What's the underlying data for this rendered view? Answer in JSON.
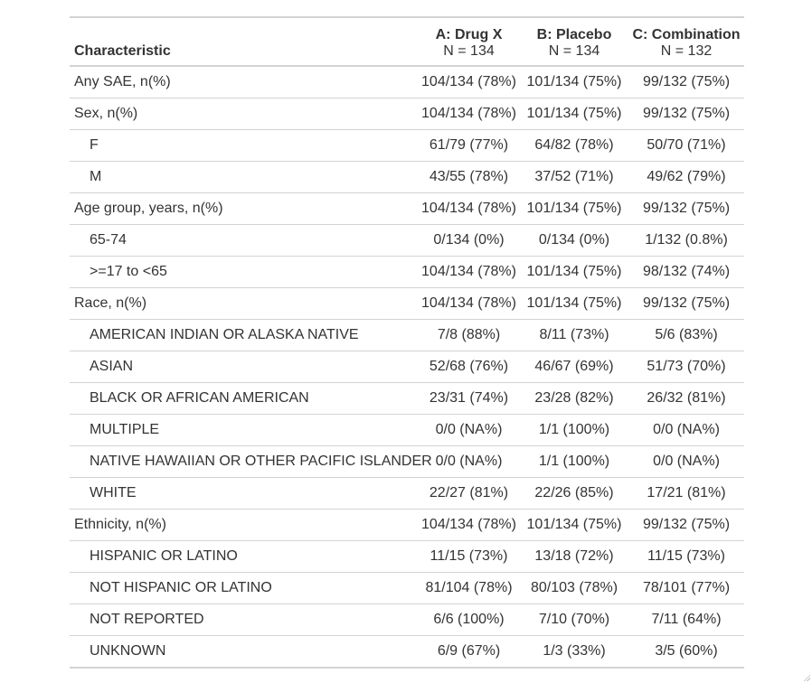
{
  "table": {
    "header": {
      "characteristic": "Characteristic",
      "arms": [
        {
          "name": "A: Drug X",
          "n": "N = 134"
        },
        {
          "name": "B: Placebo",
          "n": "N = 134"
        },
        {
          "name": "C: Combination",
          "n": "N = 132"
        }
      ]
    },
    "rows": [
      {
        "label": "Any SAE, n(%)",
        "level": 0,
        "values": [
          "104/134 (78%)",
          "101/134 (75%)",
          "99/132 (75%)"
        ]
      },
      {
        "label": "Sex, n(%)",
        "level": 0,
        "values": [
          "104/134 (78%)",
          "101/134 (75%)",
          "99/132 (75%)"
        ]
      },
      {
        "label": "F",
        "level": 1,
        "values": [
          "61/79 (77%)",
          "64/82 (78%)",
          "50/70 (71%)"
        ]
      },
      {
        "label": "M",
        "level": 1,
        "values": [
          "43/55 (78%)",
          "37/52 (71%)",
          "49/62 (79%)"
        ]
      },
      {
        "label": "Age group, years, n(%)",
        "level": 0,
        "values": [
          "104/134 (78%)",
          "101/134 (75%)",
          "99/132 (75%)"
        ]
      },
      {
        "label": "65-74",
        "level": 1,
        "values": [
          "0/134 (0%)",
          "0/134 (0%)",
          "1/132 (0.8%)"
        ]
      },
      {
        "label": ">=17 to <65",
        "level": 1,
        "values": [
          "104/134 (78%)",
          "101/134 (75%)",
          "98/132 (74%)"
        ]
      },
      {
        "label": "Race, n(%)",
        "level": 0,
        "values": [
          "104/134 (78%)",
          "101/134 (75%)",
          "99/132 (75%)"
        ]
      },
      {
        "label": "AMERICAN INDIAN OR ALASKA NATIVE",
        "level": 1,
        "values": [
          "7/8 (88%)",
          "8/11 (73%)",
          "5/6 (83%)"
        ]
      },
      {
        "label": "ASIAN",
        "level": 1,
        "values": [
          "52/68 (76%)",
          "46/67 (69%)",
          "51/73 (70%)"
        ]
      },
      {
        "label": "BLACK OR AFRICAN AMERICAN",
        "level": 1,
        "values": [
          "23/31 (74%)",
          "23/28 (82%)",
          "26/32 (81%)"
        ]
      },
      {
        "label": "MULTIPLE",
        "level": 1,
        "values": [
          "0/0 (NA%)",
          "1/1 (100%)",
          "0/0 (NA%)"
        ]
      },
      {
        "label": "NATIVE HAWAIIAN OR OTHER PACIFIC ISLANDER",
        "level": 1,
        "values": [
          "0/0 (NA%)",
          "1/1 (100%)",
          "0/0 (NA%)"
        ]
      },
      {
        "label": "WHITE",
        "level": 1,
        "values": [
          "22/27 (81%)",
          "22/26 (85%)",
          "17/21 (81%)"
        ]
      },
      {
        "label": "Ethnicity, n(%)",
        "level": 0,
        "values": [
          "104/134 (78%)",
          "101/134 (75%)",
          "99/132 (75%)"
        ]
      },
      {
        "label": "HISPANIC OR LATINO",
        "level": 1,
        "values": [
          "11/15 (73%)",
          "13/18 (72%)",
          "11/15 (73%)"
        ]
      },
      {
        "label": "NOT HISPANIC OR LATINO",
        "level": 1,
        "values": [
          "81/104 (78%)",
          "80/103 (78%)",
          "78/101 (77%)"
        ]
      },
      {
        "label": "NOT REPORTED",
        "level": 1,
        "values": [
          "6/6 (100%)",
          "7/10 (70%)",
          "7/11 (64%)"
        ]
      },
      {
        "label": "UNKNOWN",
        "level": 1,
        "values": [
          "6/9 (67%)",
          "1/3 (33%)",
          "3/5 (60%)"
        ]
      }
    ]
  },
  "colors": {
    "text": "#333333",
    "rule": "#d3d3d3",
    "background": "#ffffff"
  }
}
